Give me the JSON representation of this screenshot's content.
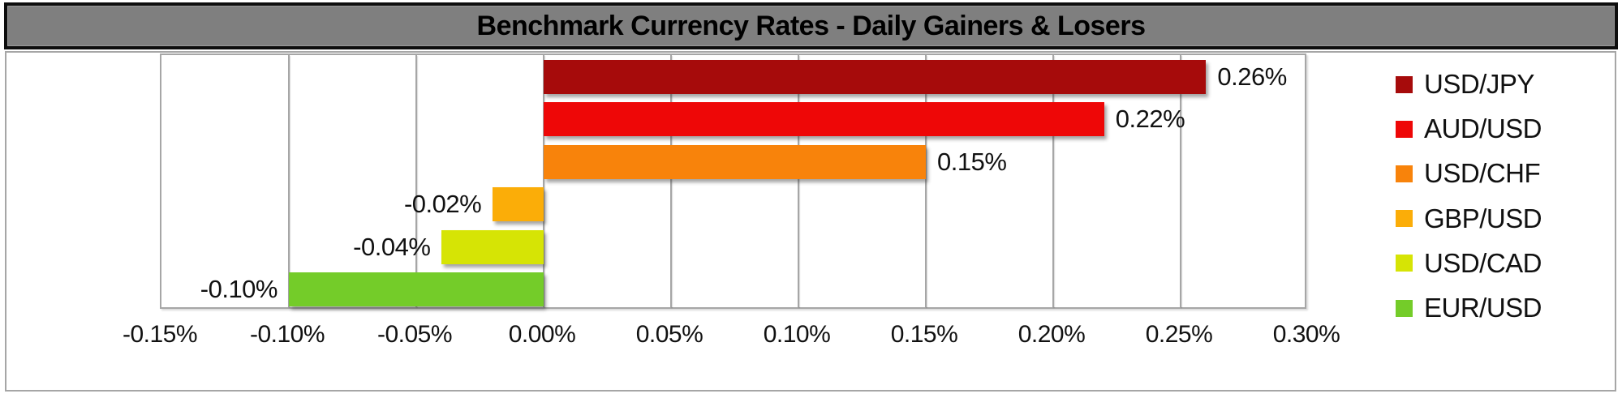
{
  "chart_data": {
    "type": "bar",
    "orientation": "horizontal",
    "title": "Benchmark Currency Rates - Daily Gainers & Losers",
    "categories": [
      "USD/JPY",
      "AUD/USD",
      "USD/CHF",
      "GBP/USD",
      "USD/CAD",
      "EUR/USD"
    ],
    "values": [
      0.26,
      0.22,
      0.15,
      -0.02,
      -0.04,
      -0.1
    ],
    "value_labels": [
      "0.26%",
      "0.22%",
      "0.15%",
      "-0.02%",
      "-0.04%",
      "-0.10%"
    ],
    "series_colors": [
      "#A60B0B",
      "#EE0707",
      "#F8830B",
      "#FBAD08",
      "#D6E405",
      "#74CC29"
    ],
    "xlabel": "",
    "ylabel": "",
    "x_axis": {
      "min": -0.15,
      "max": 0.3,
      "tick_step": 0.05,
      "ticks": [
        {
          "value": -0.15,
          "label": "-0.15%"
        },
        {
          "value": -0.1,
          "label": "-0.10%"
        },
        {
          "value": -0.05,
          "label": "-0.05%"
        },
        {
          "value": 0.0,
          "label": "0.00%"
        },
        {
          "value": 0.05,
          "label": "0.05%"
        },
        {
          "value": 0.1,
          "label": "0.10%"
        },
        {
          "value": 0.15,
          "label": "0.15%"
        },
        {
          "value": 0.2,
          "label": "0.20%"
        },
        {
          "value": 0.25,
          "label": "0.25%"
        },
        {
          "value": 0.3,
          "label": "0.30%"
        }
      ]
    },
    "legend": {
      "position": "right",
      "entries": [
        "USD/JPY",
        "AUD/USD",
        "USD/CHF",
        "GBP/USD",
        "USD/CAD",
        "EUR/USD"
      ]
    },
    "grid": "vertical-gridlines-on"
  },
  "colors": {
    "title_bg": "#7F7F7F",
    "title_border": "#0D0D0D",
    "title_text": "#000000",
    "chart_bg": "#FFFFFF",
    "chart_border": "#A6A6A6",
    "gridline": "#A6A6A6",
    "axis_text": "#111111",
    "label_text": "#111111"
  }
}
